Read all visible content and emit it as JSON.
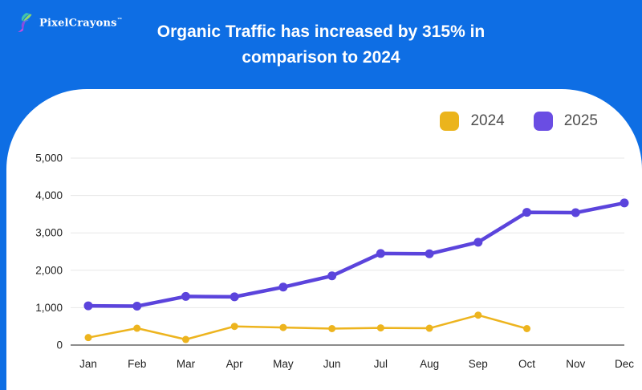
{
  "header": {
    "logo": {
      "brand": "PixelCrayons",
      "tm": "™",
      "icon": "hummingbird-icon"
    },
    "title": "Organic Traffic has increased by 315% in comparison to 2024",
    "background_color": "#0E6EE4",
    "text_color": "#ffffff"
  },
  "legend": {
    "items": [
      {
        "label": "2024",
        "color": "#EBB41C"
      },
      {
        "label": "2025",
        "color": "#6A4DE3"
      }
    ]
  },
  "chart_data": {
    "type": "line",
    "title": "Organic Traffic has increased by 315% in comparison to 2024",
    "categories": [
      "Jan",
      "Feb",
      "Mar",
      "Apr",
      "May",
      "Jun",
      "Jul",
      "Aug",
      "Sep",
      "Oct",
      "Nov",
      "Dec"
    ],
    "series": [
      {
        "name": "2024",
        "color": "#EDB41E",
        "values": [
          200,
          450,
          150,
          500,
          470,
          440,
          460,
          450,
          800,
          440,
          null,
          null
        ]
      },
      {
        "name": "2025",
        "color": "#5B44DC",
        "values": [
          1050,
          1040,
          1300,
          1290,
          1550,
          1850,
          2450,
          2440,
          2750,
          3550,
          3540,
          3800
        ]
      }
    ],
    "ylim": [
      0,
      5000
    ],
    "y_ticks": [
      {
        "value": 0,
        "label": "0"
      },
      {
        "value": 1000,
        "label": "1,000"
      },
      {
        "value": 2000,
        "label": "2,000"
      },
      {
        "value": 3000,
        "label": "3,000"
      },
      {
        "value": 4000,
        "label": "4,000"
      },
      {
        "value": 5000,
        "label": "5,000"
      }
    ],
    "grid": "horizontal",
    "legend_position": "top-right",
    "gridline_color": "#e7e7e7",
    "baseline_color": "#8c8c8c",
    "axis_label_color": "#1f1f1f"
  }
}
